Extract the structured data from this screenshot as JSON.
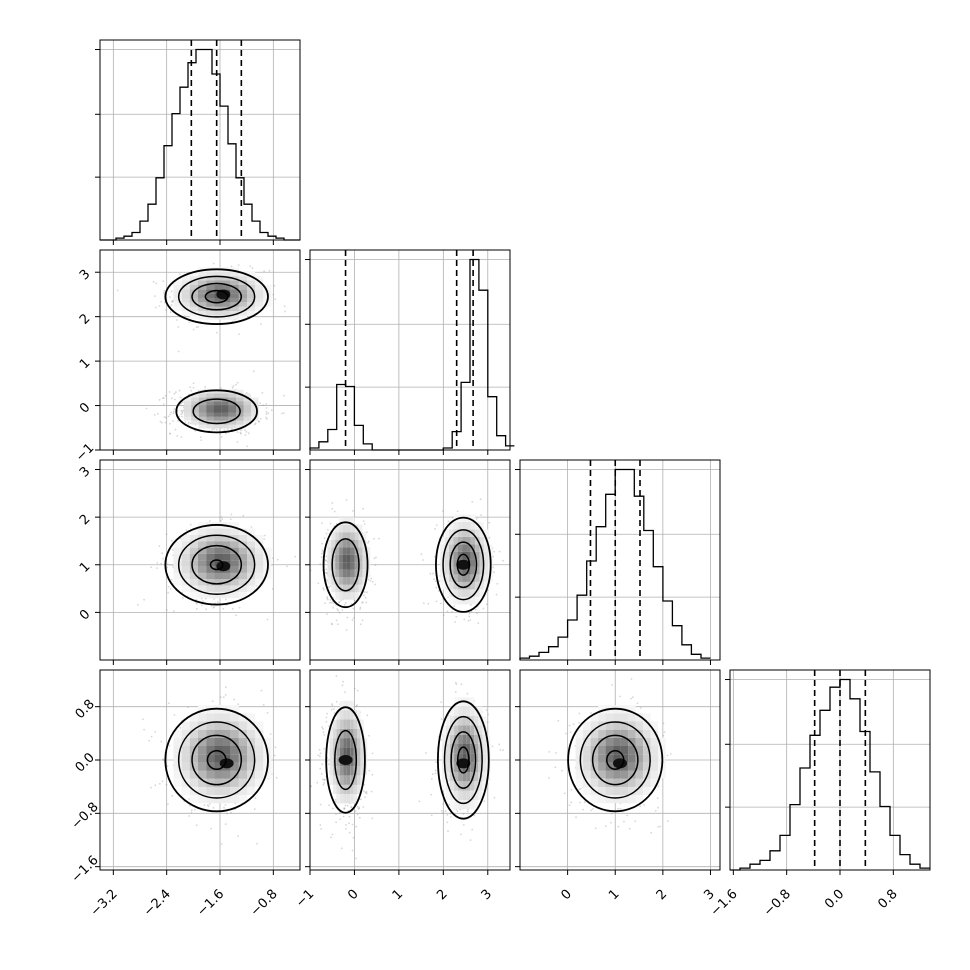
{
  "chart_data": {
    "type": "corner",
    "grid": true,
    "colors": {
      "line": "#000000",
      "grid": "#b0b0b0",
      "sample": "#8c8c8c",
      "background": "#ffffff"
    },
    "parameters": [
      {
        "index": 0,
        "range": [
          -3.4,
          -0.4
        ],
        "ticks": [
          -3.2,
          -2.4,
          -1.6,
          -0.8
        ],
        "tick_labels": [
          "−3.2",
          "−2.4",
          "−1.6",
          "−0.8"
        ]
      },
      {
        "index": 1,
        "range": [
          -1.0,
          3.5
        ],
        "ticks": [
          -1,
          0,
          1,
          2,
          3
        ],
        "tick_labels": [
          "−1",
          "0",
          "1",
          "2",
          "3"
        ]
      },
      {
        "index": 2,
        "range": [
          -1.0,
          3.2
        ],
        "ticks": [
          0,
          1,
          2,
          3
        ],
        "tick_labels": [
          "0",
          "1",
          "2",
          "3"
        ]
      },
      {
        "index": 3,
        "range": [
          -1.65,
          1.35
        ],
        "ticks": [
          -1.6,
          -0.8,
          0.0,
          0.8
        ],
        "tick_labels": [
          "−1.6",
          "−0.8",
          "0.0",
          "0.8"
        ]
      }
    ],
    "histograms": [
      {
        "param": 0,
        "bin_edges": [
          -3.4,
          -3.28,
          -3.16,
          -3.04,
          -2.92,
          -2.8,
          -2.68,
          -2.56,
          -2.44,
          -2.32,
          -2.2,
          -2.08,
          -1.96,
          -1.84,
          -1.72,
          -1.6,
          -1.48,
          -1.36,
          -1.24,
          -1.12,
          -1.0,
          -0.88,
          -0.76,
          -0.64,
          -0.52,
          -0.4
        ],
        "counts": [
          0,
          0,
          1,
          2,
          4,
          10,
          19,
          33,
          50,
          67,
          81,
          94,
          101,
          101,
          88,
          71,
          51,
          33,
          19,
          10,
          4,
          2,
          1,
          0,
          0
        ],
        "quantiles": [
          -2.03,
          -1.65,
          -1.28
        ]
      },
      {
        "param": 1,
        "bin_edges": [
          -1.0,
          -0.8,
          -0.6,
          -0.4,
          -0.2,
          0.0,
          0.2,
          0.4,
          0.6,
          0.8,
          1.0,
          1.2,
          1.4,
          1.6,
          1.8,
          2.0,
          2.2,
          2.4,
          2.6,
          2.8,
          3.0,
          3.2,
          3.4,
          3.6
        ],
        "counts": [
          1,
          4,
          10,
          32,
          31,
          12,
          3,
          0,
          0,
          0,
          0,
          0,
          0,
          0,
          0,
          1,
          9,
          33,
          93,
          78,
          26,
          7,
          2
        ],
        "quantiles": [
          -0.2,
          2.3,
          2.67
        ]
      },
      {
        "param": 2,
        "bin_edges": [
          -1.0,
          -0.8,
          -0.6,
          -0.4,
          -0.2,
          0.0,
          0.2,
          0.4,
          0.6,
          0.8,
          1.0,
          1.2,
          1.4,
          1.6,
          1.8,
          2.0,
          2.2,
          2.4,
          2.6,
          2.8,
          3.0
        ],
        "counts": [
          1,
          2,
          4,
          7,
          12,
          21,
          34,
          52,
          70,
          87,
          100,
          100,
          86,
          68,
          49,
          31,
          18,
          8,
          3,
          1
        ],
        "quantiles": [
          0.48,
          1.0,
          1.52
        ]
      },
      {
        "param": 3,
        "bin_edges": [
          -1.65,
          -1.5,
          -1.35,
          -1.2,
          -1.05,
          -0.9,
          -0.75,
          -0.6,
          -0.45,
          -0.3,
          -0.15,
          0.0,
          0.15,
          0.3,
          0.45,
          0.6,
          0.75,
          0.9,
          1.05,
          1.2,
          1.35
        ],
        "counts": [
          0,
          1,
          3,
          5,
          10,
          18,
          34,
          53,
          70,
          83,
          95,
          99,
          89,
          72,
          51,
          33,
          18,
          8,
          3,
          1
        ],
        "quantiles": [
          -0.38,
          0.0,
          0.38
        ]
      }
    ],
    "joint_panels": [
      {
        "x_param": 0,
        "y_param": 1,
        "blobs": [
          {
            "cx": -1.65,
            "cy": 2.45,
            "sx": 0.35,
            "sy": 0.28,
            "levels": [
              1.0,
              0.74,
              0.48,
              0.22
            ],
            "peak": [
              -1.55,
              2.5
            ]
          },
          {
            "cx": -1.65,
            "cy": -0.13,
            "sx": 0.32,
            "sy": 0.25,
            "levels": [
              0.86,
              0.5
            ]
          }
        ]
      },
      {
        "x_param": 0,
        "y_param": 2,
        "blobs": [
          {
            "cx": -1.65,
            "cy": 1.0,
            "sx": 0.35,
            "sy": 0.38,
            "levels": [
              1.0,
              0.74,
              0.48,
              0.12
            ],
            "peak": [
              -1.55,
              0.97
            ]
          }
        ]
      },
      {
        "x_param": 1,
        "y_param": 2,
        "blobs": [
          {
            "cx": -0.2,
            "cy": 1.0,
            "sx": 0.25,
            "sy": 0.45,
            "levels": [
              0.9,
              0.55
            ]
          },
          {
            "cx": 2.45,
            "cy": 1.0,
            "sx": 0.28,
            "sy": 0.45,
            "levels": [
              1.0,
              0.74,
              0.48,
              0.22
            ],
            "peak": [
              2.45,
              1.0
            ]
          }
        ]
      },
      {
        "x_param": 0,
        "y_param": 3,
        "blobs": [
          {
            "cx": -1.65,
            "cy": 0.0,
            "sx": 0.35,
            "sy": 0.35,
            "levels": [
              1.0,
              0.74,
              0.48,
              0.18
            ],
            "peak": [
              -1.5,
              -0.05
            ]
          }
        ]
      },
      {
        "x_param": 1,
        "y_param": 3,
        "blobs": [
          {
            "cx": -0.2,
            "cy": 0.0,
            "sx": 0.22,
            "sy": 0.4,
            "levels": [
              0.9,
              0.5
            ],
            "peak": [
              -0.2,
              0.0
            ]
          },
          {
            "cx": 2.45,
            "cy": 0.0,
            "sx": 0.26,
            "sy": 0.4,
            "levels": [
              1.0,
              0.74,
              0.48,
              0.22
            ],
            "peak": [
              2.45,
              -0.05
            ]
          }
        ]
      },
      {
        "x_param": 2,
        "y_param": 3,
        "blobs": [
          {
            "cx": 1.0,
            "cy": 0.0,
            "sx": 0.45,
            "sy": 0.35,
            "levels": [
              1.0,
              0.74,
              0.48,
              0.18
            ],
            "peak": [
              1.1,
              -0.05
            ]
          }
        ]
      }
    ]
  }
}
